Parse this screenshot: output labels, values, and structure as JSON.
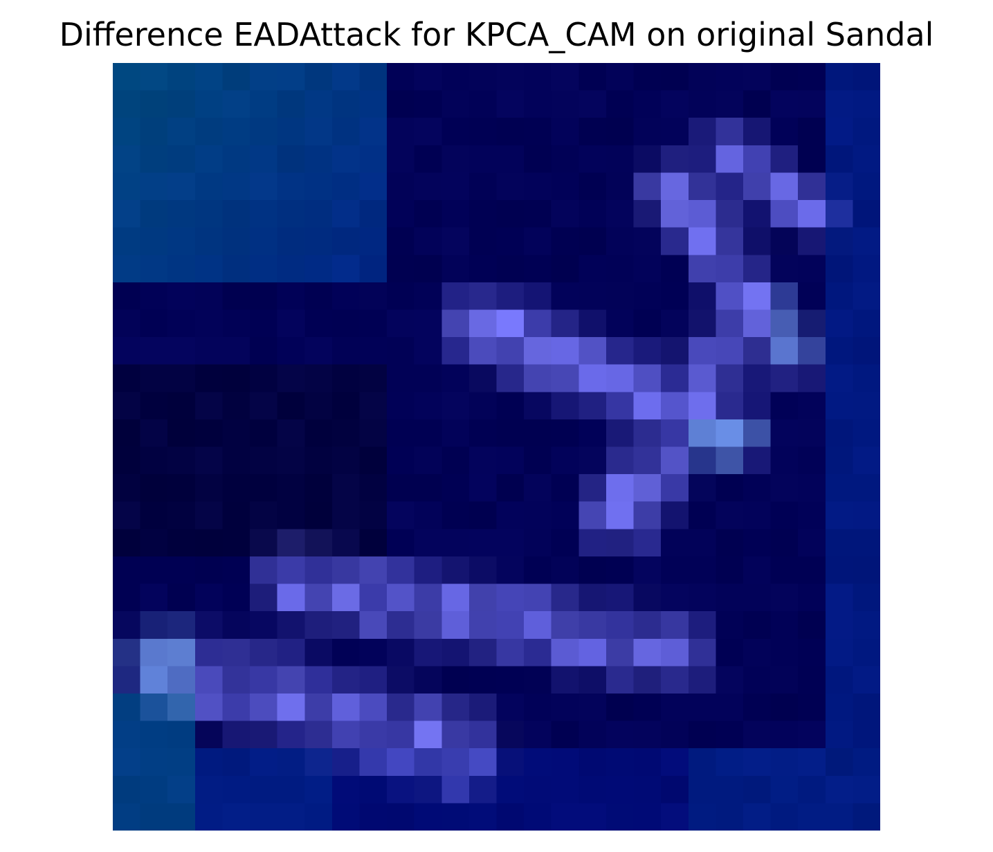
{
  "title": "Difference EADAttack for KPCA_CAM on original Sandal",
  "image": {
    "description_icon": "sandal-difference-heatmap-icon",
    "grid_rows": 28,
    "grid_cols": 28,
    "palette": {
      "dark_navy": "#00003a",
      "navy": "#000066",
      "blue": "#001f8a",
      "teal_blue": "#004a80",
      "violet": "#5b5bd6",
      "light_violet": "#7a7aff",
      "sky": "#6ab0e6"
    }
  }
}
